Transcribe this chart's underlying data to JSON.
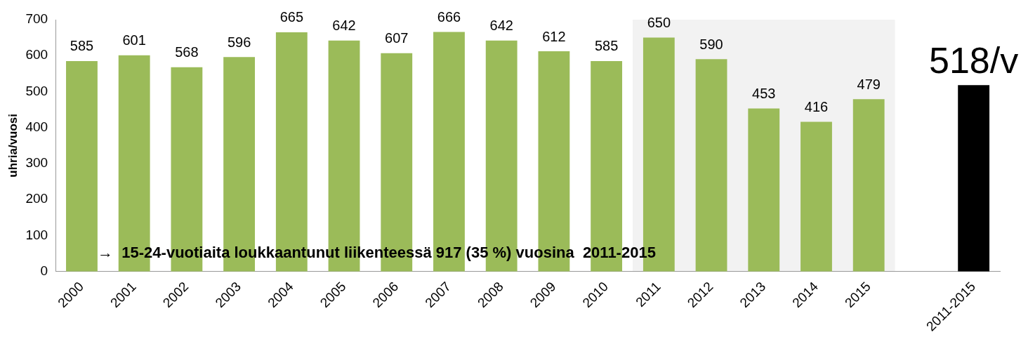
{
  "chart_data": {
    "type": "bar",
    "ylabel": "uhria/vuosi",
    "categories": [
      "2000",
      "2001",
      "2002",
      "2003",
      "2004",
      "2005",
      "2006",
      "2007",
      "2008",
      "2009",
      "2010",
      "2011",
      "2012",
      "2013",
      "2014",
      "2015",
      null,
      "2011-2015"
    ],
    "values": [
      585,
      601,
      568,
      596,
      665,
      642,
      607,
      666,
      642,
      612,
      585,
      650,
      590,
      453,
      416,
      479,
      null,
      518
    ],
    "colors": [
      "#9bbb59",
      "#9bbb59",
      "#9bbb59",
      "#9bbb59",
      "#9bbb59",
      "#9bbb59",
      "#9bbb59",
      "#9bbb59",
      "#9bbb59",
      "#9bbb59",
      "#9bbb59",
      "#9bbb59",
      "#9bbb59",
      "#9bbb59",
      "#9bbb59",
      "#9bbb59",
      "#9bbb59",
      "#000000"
    ],
    "value_labels": [
      "585",
      "601",
      "568",
      "596",
      "665",
      "642",
      "607",
      "666",
      "642",
      "612",
      "585",
      "650",
      "590",
      "453",
      "416",
      "479",
      null,
      "518/v"
    ],
    "ylim": [
      0,
      700
    ],
    "yticks": [
      0,
      100,
      200,
      300,
      400,
      500,
      600,
      700
    ],
    "grid": false,
    "legend": false,
    "bands": [
      {
        "axis": "x",
        "from": "2011",
        "to": "2015",
        "color": "#f2f2f2"
      }
    ],
    "annotations": [
      "→  15-24-vuotiaita loukkaantunut liikenteessä 917 (35 %) vuosina  2011-2015"
    ]
  }
}
